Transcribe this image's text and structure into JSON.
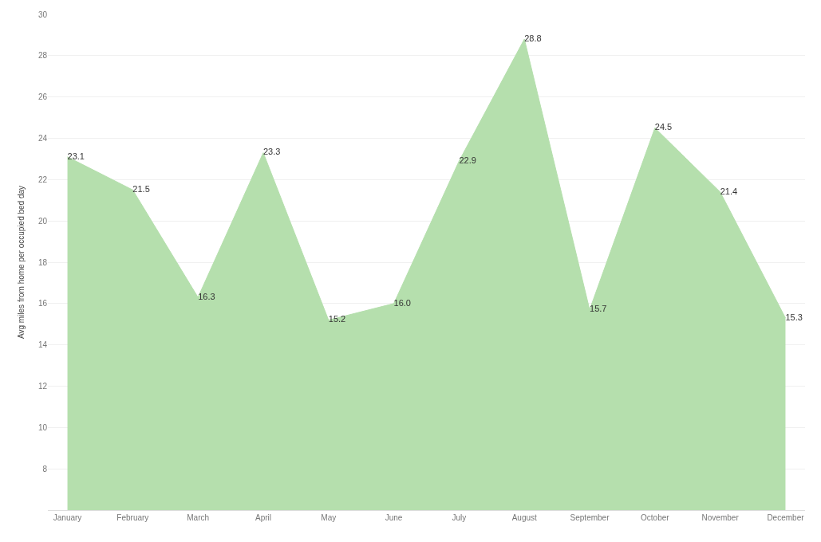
{
  "chart_data": {
    "type": "area",
    "ylabel": "Avg miles from home per occupied bed day",
    "categories": [
      "January",
      "February",
      "March",
      "April",
      "May",
      "June",
      "July",
      "August",
      "September",
      "October",
      "November",
      "December"
    ],
    "values": [
      23.1,
      21.5,
      16.3,
      23.3,
      15.2,
      16.0,
      22.9,
      28.8,
      15.7,
      24.5,
      21.4,
      15.3
    ],
    "value_labels": [
      "23.1",
      "21.5",
      "16.3",
      "23.3",
      "15.2",
      "16.0",
      "22.9",
      "28.8",
      "15.7",
      "24.5",
      "21.4",
      "15.3"
    ],
    "color": "#b5dfad",
    "ylim": [
      6,
      30
    ],
    "yticks": [
      8,
      10,
      12,
      14,
      16,
      18,
      20,
      22,
      24,
      26,
      28,
      30
    ],
    "grid": "y"
  }
}
